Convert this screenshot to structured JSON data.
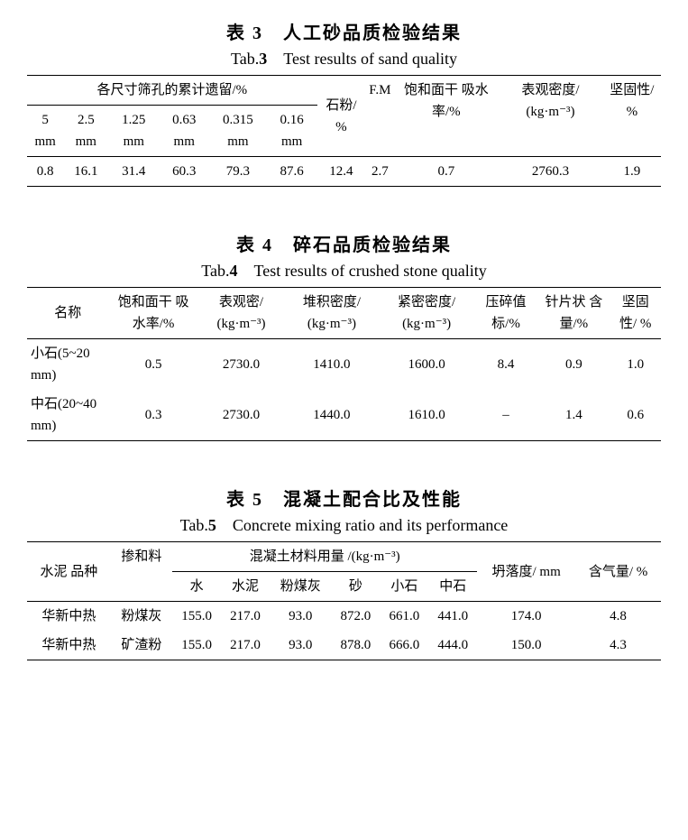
{
  "table3": {
    "title_cn": "表 3　人工砂品质检验结果",
    "title_en_prefix": "Tab.",
    "title_en_num": "3",
    "title_en_rest": "　Test results of sand quality",
    "group_header": "各尺寸筛孔的累计遗留/%",
    "cols": {
      "c5": "5 mm",
      "c25": "2.5 mm",
      "c125": "1.25 mm",
      "c063": "0.63 mm",
      "c0315": "0.315 mm",
      "c016": "0.16 mm",
      "stone_powder": "石粉/ %",
      "fm": "F.M",
      "sat_abs": "饱和面干 吸水率/%",
      "apparent_density": "表观密度/ (kg·m⁻³)",
      "soundness": "坚固性/ %"
    },
    "row": {
      "c5": "0.8",
      "c25": "16.1",
      "c125": "31.4",
      "c063": "60.3",
      "c0315": "79.3",
      "c016": "87.6",
      "stone_powder": "12.4",
      "fm": "2.7",
      "sat_abs": "0.7",
      "apparent_density": "2760.3",
      "soundness": "1.9"
    }
  },
  "table4": {
    "title_cn": "表 4　碎石品质检验结果",
    "title_en_prefix": "Tab.",
    "title_en_num": "4",
    "title_en_rest": "　Test results of crushed stone quality",
    "cols": {
      "name": "名称",
      "sat_abs": "饱和面干 吸水率/%",
      "apparent_density": "表观密/ (kg·m⁻³)",
      "bulk_density": "堆积密度/ (kg·m⁻³)",
      "tight_density": "紧密密度/ (kg·m⁻³)",
      "crush": "压碎值 标/%",
      "flaky": "针片状 含量/%",
      "soundness": "坚固性/ %"
    },
    "rows": [
      {
        "name": "小石(5~20 mm)",
        "sat_abs": "0.5",
        "apparent_density": "2730.0",
        "bulk_density": "1410.0",
        "tight_density": "1600.0",
        "crush": "8.4",
        "flaky": "0.9",
        "soundness": "1.0"
      },
      {
        "name": "中石(20~40 mm)",
        "sat_abs": "0.3",
        "apparent_density": "2730.0",
        "bulk_density": "1440.0",
        "tight_density": "1610.0",
        "crush": "–",
        "flaky": "1.4",
        "soundness": "0.6"
      }
    ]
  },
  "table5": {
    "title_cn": "表 5　混凝土配合比及性能",
    "title_en_prefix": "Tab.",
    "title_en_num": "5",
    "title_en_rest": "　Concrete mixing ratio and its performance",
    "cols": {
      "cement_type": "水泥 品种",
      "admixture": "掺和料",
      "material_group": "混凝土材料用量 /(kg·m⁻³)",
      "water": "水",
      "cement": "水泥",
      "flyash": "粉煤灰",
      "sand": "砂",
      "small_stone": "小石",
      "mid_stone": "中石",
      "slump": "坍落度/ mm",
      "air": "含气量/ %"
    },
    "rows": [
      {
        "cement_type": "华新中热",
        "admixture": "粉煤灰",
        "water": "155.0",
        "cement": "217.0",
        "flyash": "93.0",
        "sand": "872.0",
        "small_stone": "661.0",
        "mid_stone": "441.0",
        "slump": "174.0",
        "air": "4.8"
      },
      {
        "cement_type": "华新中热",
        "admixture": "矿渣粉",
        "water": "155.0",
        "cement": "217.0",
        "flyash": "93.0",
        "sand": "878.0",
        "small_stone": "666.0",
        "mid_stone": "444.0",
        "slump": "150.0",
        "air": "4.3"
      }
    ]
  }
}
